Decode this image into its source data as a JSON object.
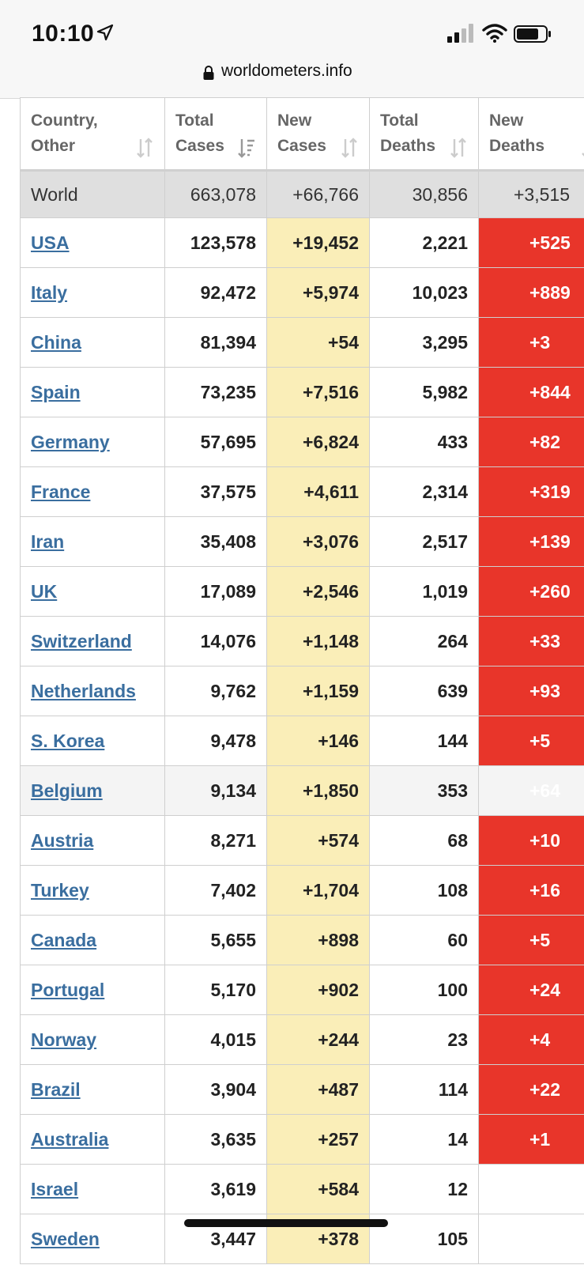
{
  "status": {
    "time": "10:10"
  },
  "browser": {
    "url": "worldometers.info"
  },
  "table": {
    "headers": [
      {
        "line1": "Country,",
        "line2": "Other"
      },
      {
        "line1": "Total",
        "line2": "Cases"
      },
      {
        "line1": "New",
        "line2": "Cases"
      },
      {
        "line1": "Total",
        "line2": "Deaths"
      },
      {
        "line1": "New",
        "line2": "Deaths"
      }
    ],
    "world": {
      "country": "World",
      "total_cases": "663,078",
      "new_cases": "+66,766",
      "total_deaths": "30,856",
      "new_deaths": "+3,515"
    },
    "rows": [
      {
        "country": "USA",
        "total_cases": "123,578",
        "new_cases": "+19,452",
        "total_deaths": "2,221",
        "new_deaths": "+525"
      },
      {
        "country": "Italy",
        "total_cases": "92,472",
        "new_cases": "+5,974",
        "total_deaths": "10,023",
        "new_deaths": "+889"
      },
      {
        "country": "China",
        "total_cases": "81,394",
        "new_cases": "+54",
        "total_deaths": "3,295",
        "new_deaths": "+3"
      },
      {
        "country": "Spain",
        "total_cases": "73,235",
        "new_cases": "+7,516",
        "total_deaths": "5,982",
        "new_deaths": "+844"
      },
      {
        "country": "Germany",
        "total_cases": "57,695",
        "new_cases": "+6,824",
        "total_deaths": "433",
        "new_deaths": "+82"
      },
      {
        "country": "France",
        "total_cases": "37,575",
        "new_cases": "+4,611",
        "total_deaths": "2,314",
        "new_deaths": "+319"
      },
      {
        "country": "Iran",
        "total_cases": "35,408",
        "new_cases": "+3,076",
        "total_deaths": "2,517",
        "new_deaths": "+139"
      },
      {
        "country": "UK",
        "total_cases": "17,089",
        "new_cases": "+2,546",
        "total_deaths": "1,019",
        "new_deaths": "+260"
      },
      {
        "country": "Switzerland",
        "total_cases": "14,076",
        "new_cases": "+1,148",
        "total_deaths": "264",
        "new_deaths": "+33"
      },
      {
        "country": "Netherlands",
        "total_cases": "9,762",
        "new_cases": "+1,159",
        "total_deaths": "639",
        "new_deaths": "+93"
      },
      {
        "country": "S. Korea",
        "total_cases": "9,478",
        "new_cases": "+146",
        "total_deaths": "144",
        "new_deaths": "+5"
      },
      {
        "country": "Belgium",
        "total_cases": "9,134",
        "new_cases": "+1,850",
        "total_deaths": "353",
        "new_deaths": "+64"
      },
      {
        "country": "Austria",
        "total_cases": "8,271",
        "new_cases": "+574",
        "total_deaths": "68",
        "new_deaths": "+10"
      },
      {
        "country": "Turkey",
        "total_cases": "7,402",
        "new_cases": "+1,704",
        "total_deaths": "108",
        "new_deaths": "+16"
      },
      {
        "country": "Canada",
        "total_cases": "5,655",
        "new_cases": "+898",
        "total_deaths": "60",
        "new_deaths": "+5"
      },
      {
        "country": "Portugal",
        "total_cases": "5,170",
        "new_cases": "+902",
        "total_deaths": "100",
        "new_deaths": "+24"
      },
      {
        "country": "Norway",
        "total_cases": "4,015",
        "new_cases": "+244",
        "total_deaths": "23",
        "new_deaths": "+4"
      },
      {
        "country": "Brazil",
        "total_cases": "3,904",
        "new_cases": "+487",
        "total_deaths": "114",
        "new_deaths": "+22"
      },
      {
        "country": "Australia",
        "total_cases": "3,635",
        "new_cases": "+257",
        "total_deaths": "14",
        "new_deaths": "+1"
      },
      {
        "country": "Israel",
        "total_cases": "3,619",
        "new_cases": "+584",
        "total_deaths": "12",
        "new_deaths": ""
      },
      {
        "country": "Sweden",
        "total_cases": "3,447",
        "new_cases": "+378",
        "total_deaths": "105",
        "new_deaths": ""
      }
    ],
    "highlighted_row_index": 11
  },
  "colors": {
    "new_cases_bg": "#faeeb8",
    "new_deaths_bg": "#e8352a",
    "link": "#3a6e9f",
    "world_row_bg": "#dfdfdf"
  }
}
